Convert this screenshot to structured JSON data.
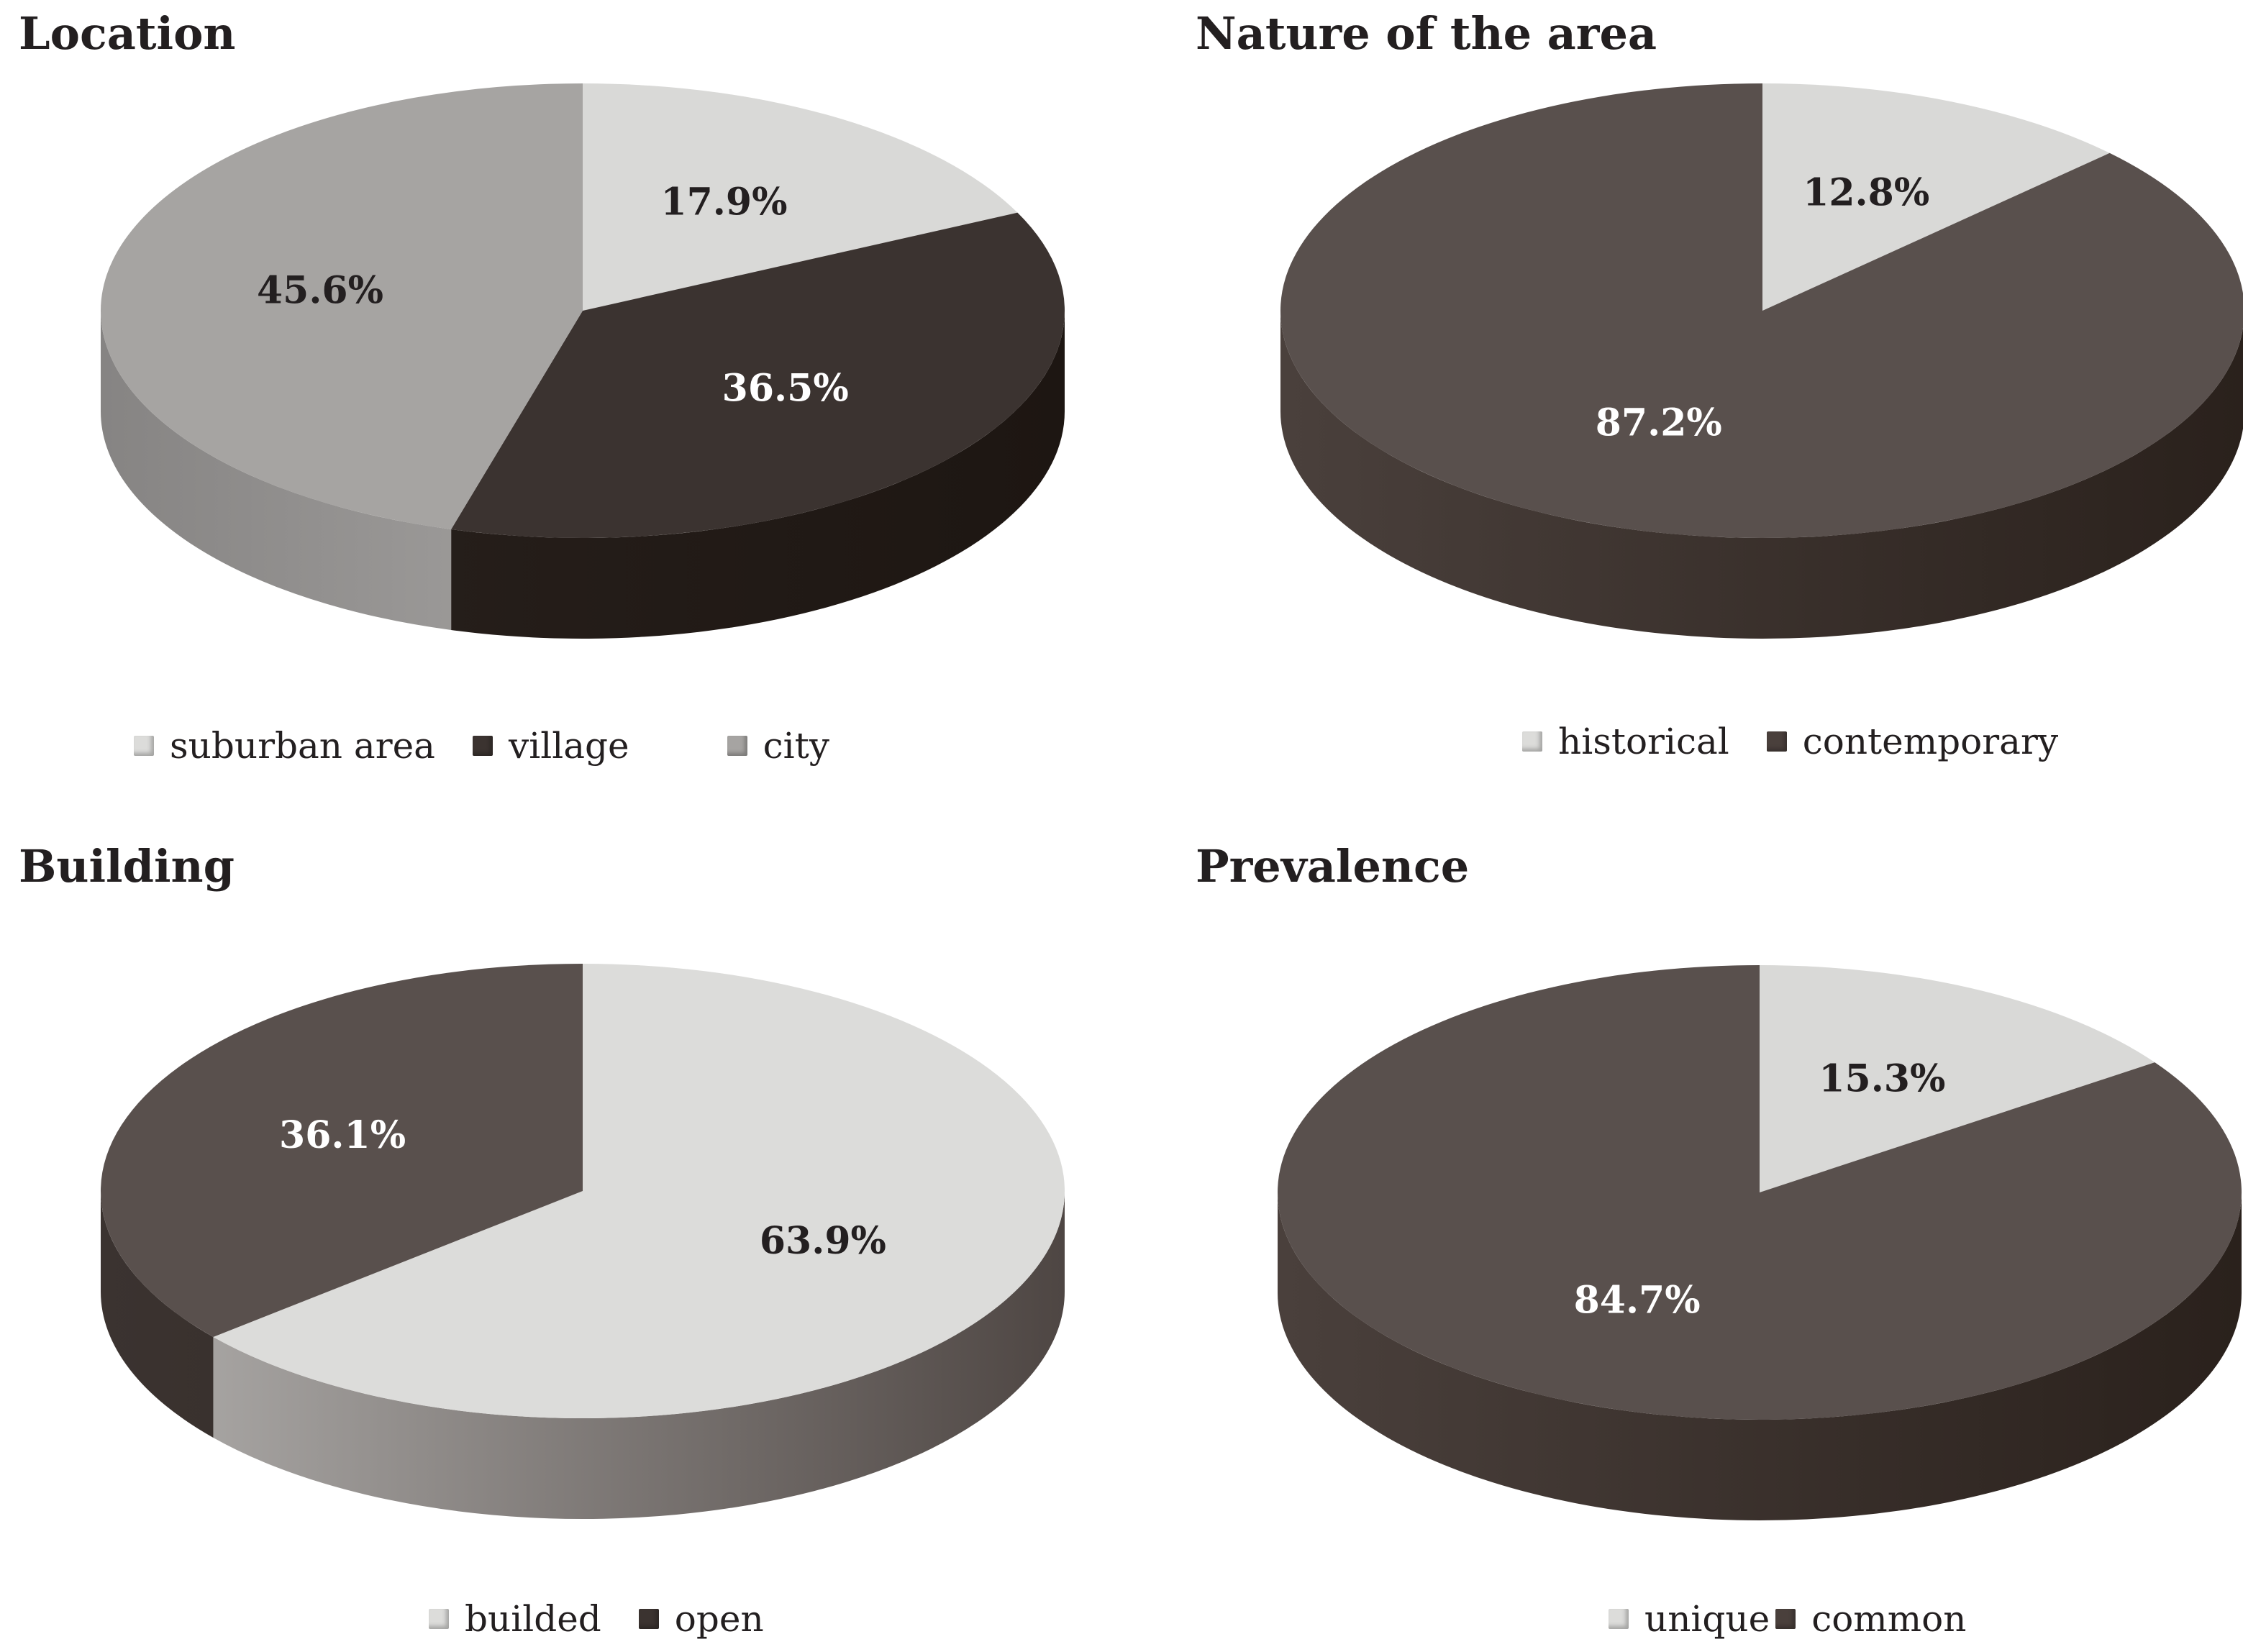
{
  "chart_data": [
    {
      "type": "pie",
      "title": "Location",
      "slices": [
        {
          "name": "suburban area",
          "value": 17.9,
          "label": "17.9%",
          "color": "#d9d9d7",
          "side": [
            "#b3b3b1",
            "#ededeb"
          ]
        },
        {
          "name": "village",
          "value": 36.5,
          "label": "36.5%",
          "color": "#3b3330",
          "side": [
            "#2a221e",
            "#1d1612"
          ]
        },
        {
          "name": "city",
          "value": 45.6,
          "label": "45.6%",
          "color": "#a6a4a2",
          "side": [
            "#868483",
            "#bdbbb9"
          ]
        }
      ],
      "legend": [
        "suburban area",
        "village",
        "city"
      ],
      "legend_position": "bottom"
    },
    {
      "type": "pie",
      "title": "Nature of the area",
      "slices": [
        {
          "name": "historical",
          "value": 12.8,
          "label": "12.8%",
          "color": "#d9d9d7",
          "side": [
            "#b3b3b1",
            "#ededeb"
          ]
        },
        {
          "name": "contemporary",
          "value": 87.2,
          "label": "87.2%",
          "color": "#59504d",
          "side": [
            "#4a403c",
            "#2a211c"
          ]
        }
      ],
      "legend": [
        "historical",
        "contemporary"
      ],
      "legend_position": "bottom"
    },
    {
      "type": "pie",
      "title": "Building",
      "slices": [
        {
          "name": "builded",
          "value": 63.9,
          "label": "63.9%",
          "color": "#dcdcda",
          "side": [
            "#b1afad",
            "#4e4643"
          ]
        },
        {
          "name": "open",
          "value": 36.1,
          "label": "36.1%",
          "color": "#59504d",
          "side": [
            "#3b3330",
            "#2a221e"
          ]
        }
      ],
      "legend": [
        "builded",
        "open"
      ],
      "legend_position": "bottom"
    },
    {
      "type": "pie",
      "title": "Prevalence",
      "slices": [
        {
          "name": "unique",
          "value": 15.3,
          "label": "15.3%",
          "color": "#d9d9d7",
          "side": [
            "#b3b3b1",
            "#ededeb"
          ]
        },
        {
          "name": "common",
          "value": 84.7,
          "label": "84.7%",
          "color": "#59504d",
          "side": [
            "#4a403c",
            "#2a211c"
          ]
        }
      ],
      "legend": [
        "unique",
        "common"
      ],
      "legend_position": "bottom"
    }
  ]
}
